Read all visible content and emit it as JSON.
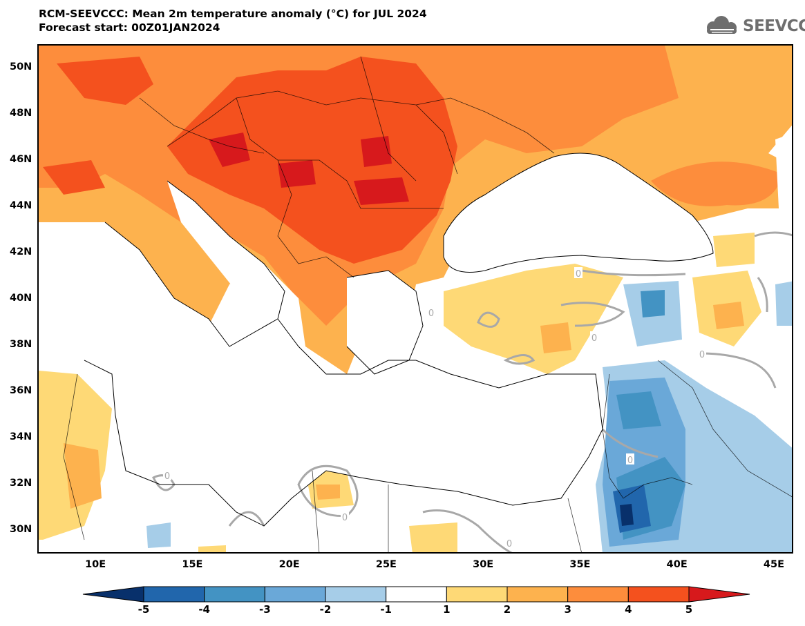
{
  "header": {
    "title_line1": "RCM-SEEVCCC: Mean 2m temperature anomaly (°C) for JUL 2024",
    "title_line2": "Forecast start: 00Z01JAN2024"
  },
  "logo": {
    "text": "SEEVCCC",
    "icon": "cloud-logo-icon"
  },
  "map": {
    "lon_range": [
      7,
      46
    ],
    "lat_range": [
      29,
      51
    ],
    "lat_ticks": [
      {
        "value": 50,
        "label": "50N"
      },
      {
        "value": 48,
        "label": "48N"
      },
      {
        "value": 46,
        "label": "46N"
      },
      {
        "value": 44,
        "label": "44N"
      },
      {
        "value": 42,
        "label": "42N"
      },
      {
        "value": 40,
        "label": "40N"
      },
      {
        "value": 38,
        "label": "38N"
      },
      {
        "value": 36,
        "label": "36N"
      },
      {
        "value": 34,
        "label": "34N"
      },
      {
        "value": 32,
        "label": "32N"
      },
      {
        "value": 30,
        "label": "30N"
      }
    ],
    "lon_ticks": [
      {
        "value": 10,
        "label": "10E"
      },
      {
        "value": 15,
        "label": "15E"
      },
      {
        "value": 20,
        "label": "20E"
      },
      {
        "value": 25,
        "label": "25E"
      },
      {
        "value": 30,
        "label": "30E"
      },
      {
        "value": 35,
        "label": "35E"
      },
      {
        "value": 40,
        "label": "40E"
      },
      {
        "value": 45,
        "label": "45E"
      }
    ],
    "contour_zero_label": "0"
  },
  "colorbar": {
    "levels": [
      "-5",
      "-4",
      "-3",
      "-2",
      "-1",
      "1",
      "2",
      "3",
      "4",
      "5"
    ],
    "colors": [
      "#08306b",
      "#2166ac",
      "#4393c3",
      "#6aa8d8",
      "#a6cde8",
      "#ffffff",
      "#fed976",
      "#fdb24e",
      "#fd8d3c",
      "#f4511e",
      "#d7191c"
    ]
  }
}
